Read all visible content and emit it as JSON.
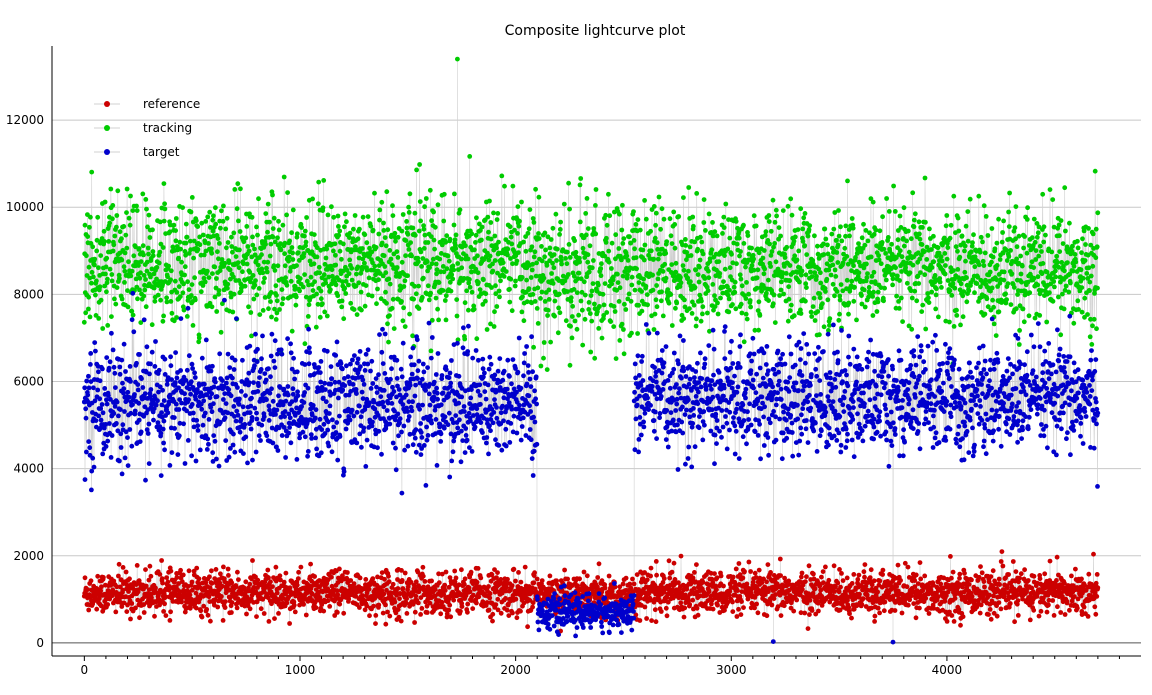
{
  "chart_data": {
    "type": "scatter",
    "title": "Composite lightcurve plot",
    "xlabel": "",
    "ylabel": "",
    "xlim": [
      -150,
      4900
    ],
    "ylim": [
      -300,
      13700
    ],
    "x_ticks": [
      0,
      1000,
      2000,
      3000,
      4000
    ],
    "y_ticks": [
      0,
      2000,
      4000,
      6000,
      8000,
      10000,
      12000
    ],
    "grid": "horizontal",
    "legend_position": "top-left",
    "x_range": [
      0,
      4700
    ],
    "series": [
      {
        "name": "reference",
        "color": "#cc0000",
        "typical_range": [
          600,
          1800
        ],
        "mean": 1150,
        "segments": [
          {
            "x_start": 0,
            "x_end": 2100,
            "mean": 1150,
            "spread": 450
          },
          {
            "x_start": 2100,
            "x_end": 2550,
            "mean": 1100,
            "spread": 400
          },
          {
            "x_start": 2550,
            "x_end": 4700,
            "mean": 1150,
            "spread": 450
          }
        ]
      },
      {
        "name": "tracking",
        "color": "#00cc00",
        "segments": [
          {
            "x_start": 0,
            "x_end": 2100,
            "mean": 8700,
            "spread": 1300
          },
          {
            "x_start": 2100,
            "x_end": 2550,
            "mean": 8400,
            "spread": 1500
          },
          {
            "x_start": 2550,
            "x_end": 4700,
            "mean": 8600,
            "spread": 1200
          }
        ],
        "peak": {
          "x": 1730,
          "y": 13400
        }
      },
      {
        "name": "target",
        "color": "#0000cc",
        "segments": [
          {
            "x_start": 0,
            "x_end": 2100,
            "mean": 5500,
            "spread": 1200
          },
          {
            "x_start": 2100,
            "x_end": 2550,
            "mean": 700,
            "spread": 350
          },
          {
            "x_start": 2550,
            "x_end": 4700,
            "mean": 5600,
            "spread": 1100
          }
        ],
        "dropouts": [
          {
            "x": 3195,
            "y": 30
          },
          {
            "x": 3750,
            "y": 20
          }
        ]
      }
    ]
  }
}
